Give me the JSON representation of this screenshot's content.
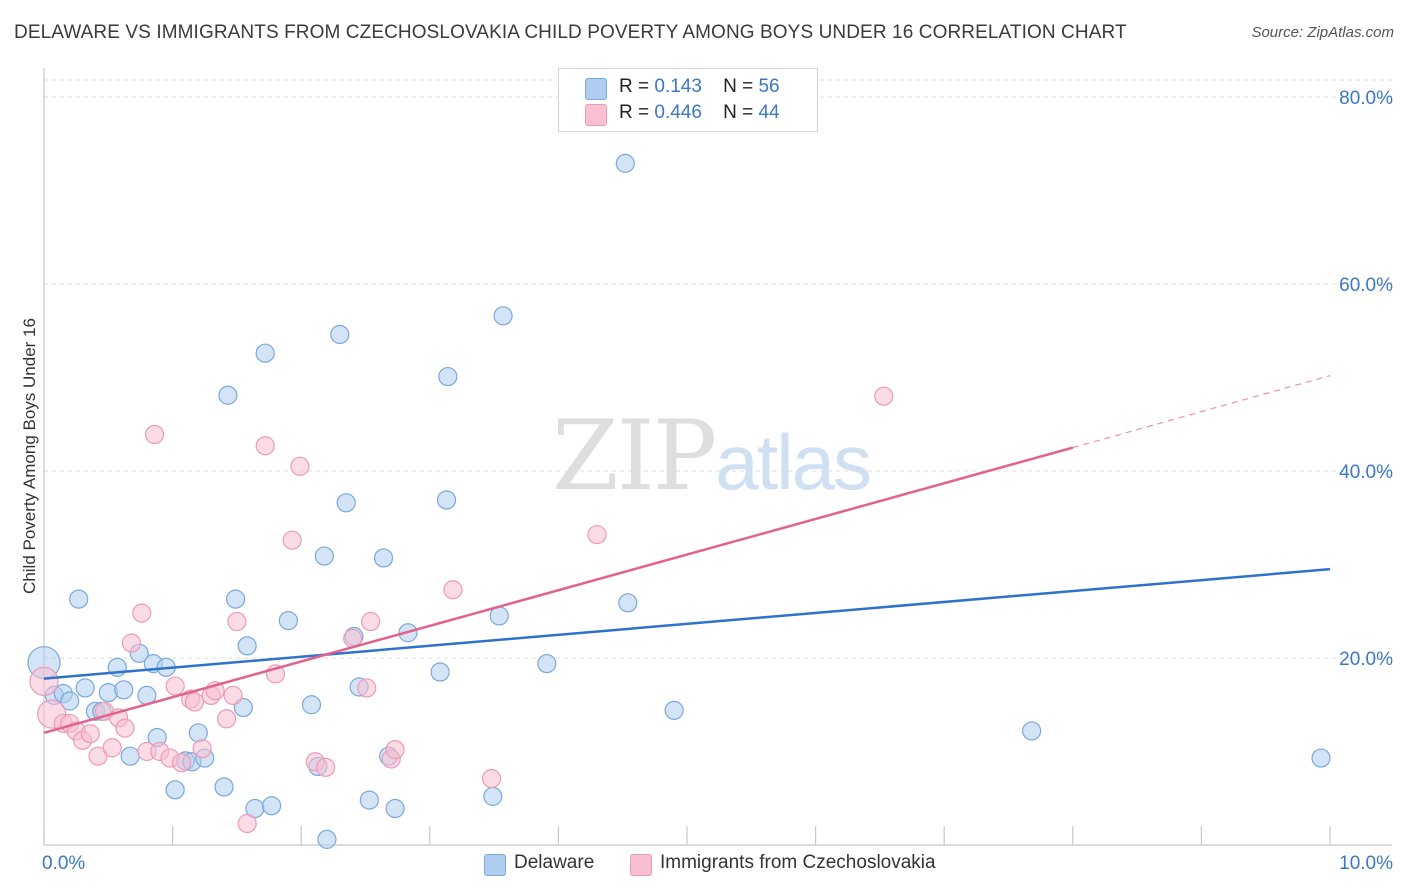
{
  "title": "DELAWARE VS IMMIGRANTS FROM CZECHOSLOVAKIA CHILD POVERTY AMONG BOYS UNDER 16 CORRELATION CHART",
  "source": "Source: ZipAtlas.com",
  "watermark": {
    "zip": "ZIP",
    "atlas": "atlas"
  },
  "legend_top": [
    {
      "r_label": "R =",
      "r_value": "0.143",
      "n_label": "N =",
      "n_value": "56",
      "color": "#aecdf1"
    },
    {
      "r_label": "R =",
      "r_value": "0.446",
      "n_label": "N =",
      "n_value": "44",
      "color": "#f8c0d2"
    }
  ],
  "legend_bottom": [
    {
      "label": "Delaware",
      "color": "#aecdf1"
    },
    {
      "label": "Immigrants from Czechoslovakia",
      "color": "#f8c0d2"
    }
  ],
  "chart_data": {
    "type": "scatter",
    "title": "DELAWARE VS IMMIGRANTS FROM CZECHOSLOVAKIA CHILD POVERTY AMONG BOYS UNDER 16 CORRELATION CHART",
    "xlabel": "",
    "ylabel": "Child Poverty Among Boys Under 16",
    "xlim": [
      0,
      10
    ],
    "ylim": [
      0,
      80
    ],
    "x_tick_labels": [
      "0.0%",
      "10.0%"
    ],
    "y_ticks": [
      {
        "value": 20,
        "label": "20.0%"
      },
      {
        "value": 40,
        "label": "40.0%"
      },
      {
        "value": 60,
        "label": "60.0%"
      },
      {
        "value": 80,
        "label": "80.0%"
      }
    ],
    "grid": true,
    "series": [
      {
        "name": "Delaware",
        "color": "#aecdf1",
        "stroke": "#7aa8dc",
        "line_color": "#2f72c9",
        "trend": {
          "x0": 0.0,
          "y0": 17.8,
          "x1": 10.0,
          "y1": 29.5
        },
        "points": [
          [
            0.0,
            19.5,
            16
          ],
          [
            0.08,
            16.0,
            9
          ],
          [
            0.15,
            16.2,
            9
          ],
          [
            0.2,
            15.4,
            9
          ],
          [
            0.27,
            26.3,
            9
          ],
          [
            0.32,
            16.8,
            9
          ],
          [
            0.4,
            14.3,
            9
          ],
          [
            0.45,
            14.3,
            9
          ],
          [
            0.5,
            16.3,
            9
          ],
          [
            0.57,
            19.0,
            9
          ],
          [
            0.62,
            16.6,
            9
          ],
          [
            0.67,
            9.5,
            9
          ],
          [
            0.74,
            20.5,
            9
          ],
          [
            0.8,
            16.0,
            9
          ],
          [
            0.85,
            19.4,
            9
          ],
          [
            0.88,
            11.5,
            9
          ],
          [
            0.95,
            19.0,
            9
          ],
          [
            1.02,
            5.9,
            9
          ],
          [
            1.1,
            9.0,
            9
          ],
          [
            1.15,
            8.9,
            9
          ],
          [
            1.2,
            12.0,
            9
          ],
          [
            1.25,
            9.3,
            9
          ],
          [
            1.4,
            6.2,
            9
          ],
          [
            1.43,
            48.1,
            9
          ],
          [
            1.49,
            26.3,
            9
          ],
          [
            1.55,
            14.7,
            9
          ],
          [
            1.58,
            21.3,
            9
          ],
          [
            1.64,
            3.9,
            9
          ],
          [
            1.72,
            52.6,
            9
          ],
          [
            1.77,
            4.2,
            9
          ],
          [
            1.9,
            24.0,
            9
          ],
          [
            2.08,
            15.0,
            9
          ],
          [
            2.13,
            8.4,
            9
          ],
          [
            2.18,
            30.9,
            9
          ],
          [
            2.2,
            0.6,
            9
          ],
          [
            2.3,
            54.6,
            9
          ],
          [
            2.35,
            36.6,
            9
          ],
          [
            2.41,
            22.3,
            9
          ],
          [
            2.45,
            16.9,
            9
          ],
          [
            2.53,
            4.8,
            9
          ],
          [
            2.64,
            30.7,
            9
          ],
          [
            2.68,
            9.5,
            9
          ],
          [
            2.73,
            3.9,
            9
          ],
          [
            2.83,
            22.7,
            9
          ],
          [
            3.08,
            18.5,
            9
          ],
          [
            3.13,
            36.9,
            9
          ],
          [
            3.14,
            50.1,
            9
          ],
          [
            3.49,
            5.2,
            9
          ],
          [
            3.54,
            24.5,
            9
          ],
          [
            3.57,
            56.6,
            9
          ],
          [
            3.91,
            19.4,
            9
          ],
          [
            4.52,
            72.9,
            9
          ],
          [
            4.54,
            25.9,
            9
          ],
          [
            4.9,
            14.4,
            9
          ],
          [
            7.68,
            12.2,
            9
          ],
          [
            9.93,
            9.3,
            9
          ]
        ]
      },
      {
        "name": "Immigrants from Czechoslovakia",
        "color": "#f8c0d2",
        "stroke": "#ee9ab6",
        "line_color": "#e2628f",
        "trend": {
          "x0": 0.0,
          "y0": 12.0,
          "x1": 8.0,
          "y1": 42.5,
          "dash_to": {
            "x": 10.0,
            "y": 50.2
          }
        },
        "points": [
          [
            0.0,
            17.5,
            14
          ],
          [
            0.06,
            14.0,
            14
          ],
          [
            0.15,
            13.0,
            9
          ],
          [
            0.2,
            13.0,
            9
          ],
          [
            0.25,
            12.2,
            9
          ],
          [
            0.3,
            11.2,
            9
          ],
          [
            0.36,
            11.9,
            9
          ],
          [
            0.42,
            9.5,
            9
          ],
          [
            0.47,
            14.3,
            9
          ],
          [
            0.53,
            10.4,
            9
          ],
          [
            0.58,
            13.6,
            9
          ],
          [
            0.63,
            12.5,
            9
          ],
          [
            0.68,
            21.6,
            9
          ],
          [
            0.76,
            24.8,
            9
          ],
          [
            0.8,
            10.0,
            9
          ],
          [
            0.86,
            43.9,
            9
          ],
          [
            0.9,
            10.0,
            9
          ],
          [
            0.98,
            9.3,
            9
          ],
          [
            1.02,
            17.0,
            9
          ],
          [
            1.07,
            8.8,
            9
          ],
          [
            1.14,
            15.6,
            9
          ],
          [
            1.17,
            15.3,
            9
          ],
          [
            1.23,
            10.3,
            9
          ],
          [
            1.3,
            16.0,
            9
          ],
          [
            1.33,
            16.5,
            9
          ],
          [
            1.42,
            13.5,
            9
          ],
          [
            1.47,
            16.0,
            9
          ],
          [
            1.5,
            23.9,
            9
          ],
          [
            1.58,
            2.3,
            9
          ],
          [
            1.72,
            42.7,
            9
          ],
          [
            1.8,
            18.3,
            9
          ],
          [
            1.93,
            32.6,
            9
          ],
          [
            1.99,
            40.5,
            9
          ],
          [
            2.11,
            8.9,
            9
          ],
          [
            2.19,
            8.3,
            9
          ],
          [
            2.4,
            22.1,
            9
          ],
          [
            2.51,
            16.8,
            9
          ],
          [
            2.54,
            23.9,
            9
          ],
          [
            2.7,
            9.2,
            9
          ],
          [
            2.73,
            10.2,
            9
          ],
          [
            3.18,
            27.3,
            9
          ],
          [
            3.48,
            7.1,
            9
          ],
          [
            4.3,
            33.2,
            9
          ],
          [
            6.53,
            48.0,
            9
          ]
        ]
      }
    ]
  }
}
